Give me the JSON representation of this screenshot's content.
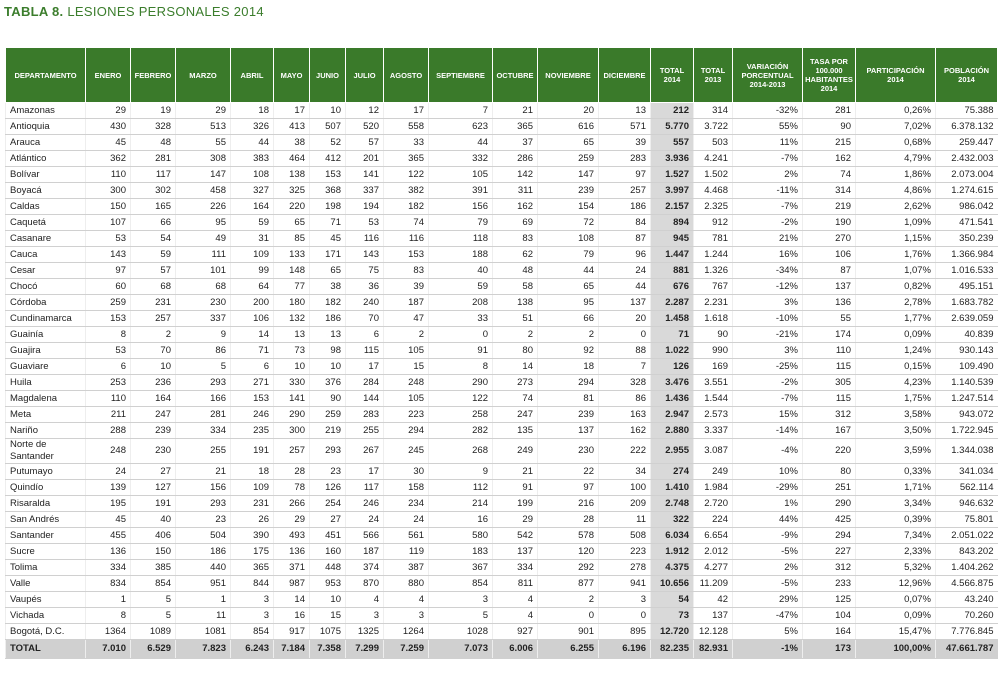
{
  "title": {
    "label": "TABLA 8.",
    "text": "LESIONES PERSONALES 2014"
  },
  "table": {
    "headers": [
      "DEPARTAMENTO",
      "ENERO",
      "FEBRERO",
      "MARZO",
      "ABRIL",
      "MAYO",
      "JUNIO",
      "JULIO",
      "AGOSTO",
      "SEPTIEMBRE",
      "OCTUBRE",
      "NOVIEMBRE",
      "DICIEMBRE",
      "TOTAL\n2014",
      "TOTAL\n2013",
      "VARIACIÓN\nPORCENTUAL\n2014-2013",
      "TASA POR\n100.000\nHABITANTES\n2014",
      "PARTICIPACIÓN\n2014",
      "POBLACIÓN\n2014"
    ],
    "rows": [
      [
        "Amazonas",
        "29",
        "19",
        "29",
        "18",
        "17",
        "10",
        "12",
        "17",
        "7",
        "21",
        "20",
        "13",
        "212",
        "314",
        "-32%",
        "281",
        "0,26%",
        "75.388"
      ],
      [
        "Antioquia",
        "430",
        "328",
        "513",
        "326",
        "413",
        "507",
        "520",
        "558",
        "623",
        "365",
        "616",
        "571",
        "5.770",
        "3.722",
        "55%",
        "90",
        "7,02%",
        "6.378.132"
      ],
      [
        "Arauca",
        "45",
        "48",
        "55",
        "44",
        "38",
        "52",
        "57",
        "33",
        "44",
        "37",
        "65",
        "39",
        "557",
        "503",
        "11%",
        "215",
        "0,68%",
        "259.447"
      ],
      [
        "Atlántico",
        "362",
        "281",
        "308",
        "383",
        "464",
        "412",
        "201",
        "365",
        "332",
        "286",
        "259",
        "283",
        "3.936",
        "4.241",
        "-7%",
        "162",
        "4,79%",
        "2.432.003"
      ],
      [
        "Bolívar",
        "110",
        "117",
        "147",
        "108",
        "138",
        "153",
        "141",
        "122",
        "105",
        "142",
        "147",
        "97",
        "1.527",
        "1.502",
        "2%",
        "74",
        "1,86%",
        "2.073.004"
      ],
      [
        "Boyacá",
        "300",
        "302",
        "458",
        "327",
        "325",
        "368",
        "337",
        "382",
        "391",
        "311",
        "239",
        "257",
        "3.997",
        "4.468",
        "-11%",
        "314",
        "4,86%",
        "1.274.615"
      ],
      [
        "Caldas",
        "150",
        "165",
        "226",
        "164",
        "220",
        "198",
        "194",
        "182",
        "156",
        "162",
        "154",
        "186",
        "2.157",
        "2.325",
        "-7%",
        "219",
        "2,62%",
        "986.042"
      ],
      [
        "Caquetá",
        "107",
        "66",
        "95",
        "59",
        "65",
        "71",
        "53",
        "74",
        "79",
        "69",
        "72",
        "84",
        "894",
        "912",
        "-2%",
        "190",
        "1,09%",
        "471.541"
      ],
      [
        "Casanare",
        "53",
        "54",
        "49",
        "31",
        "85",
        "45",
        "116",
        "116",
        "118",
        "83",
        "108",
        "87",
        "945",
        "781",
        "21%",
        "270",
        "1,15%",
        "350.239"
      ],
      [
        "Cauca",
        "143",
        "59",
        "111",
        "109",
        "133",
        "171",
        "143",
        "153",
        "188",
        "62",
        "79",
        "96",
        "1.447",
        "1.244",
        "16%",
        "106",
        "1,76%",
        "1.366.984"
      ],
      [
        "Cesar",
        "97",
        "57",
        "101",
        "99",
        "148",
        "65",
        "75",
        "83",
        "40",
        "48",
        "44",
        "24",
        "881",
        "1.326",
        "-34%",
        "87",
        "1,07%",
        "1.016.533"
      ],
      [
        "Chocó",
        "60",
        "68",
        "68",
        "64",
        "77",
        "38",
        "36",
        "39",
        "59",
        "58",
        "65",
        "44",
        "676",
        "767",
        "-12%",
        "137",
        "0,82%",
        "495.151"
      ],
      [
        "Córdoba",
        "259",
        "231",
        "230",
        "200",
        "180",
        "182",
        "240",
        "187",
        "208",
        "138",
        "95",
        "137",
        "2.287",
        "2.231",
        "3%",
        "136",
        "2,78%",
        "1.683.782"
      ],
      [
        "Cundinamarca",
        "153",
        "257",
        "337",
        "106",
        "132",
        "186",
        "70",
        "47",
        "33",
        "51",
        "66",
        "20",
        "1.458",
        "1.618",
        "-10%",
        "55",
        "1,77%",
        "2.639.059"
      ],
      [
        "Guainía",
        "8",
        "2",
        "9",
        "14",
        "13",
        "13",
        "6",
        "2",
        "0",
        "2",
        "2",
        "0",
        "71",
        "90",
        "-21%",
        "174",
        "0,09%",
        "40.839"
      ],
      [
        "Guajira",
        "53",
        "70",
        "86",
        "71",
        "73",
        "98",
        "115",
        "105",
        "91",
        "80",
        "92",
        "88",
        "1.022",
        "990",
        "3%",
        "110",
        "1,24%",
        "930.143"
      ],
      [
        "Guaviare",
        "6",
        "10",
        "5",
        "6",
        "10",
        "10",
        "17",
        "15",
        "8",
        "14",
        "18",
        "7",
        "126",
        "169",
        "-25%",
        "115",
        "0,15%",
        "109.490"
      ],
      [
        "Huila",
        "253",
        "236",
        "293",
        "271",
        "330",
        "376",
        "284",
        "248",
        "290",
        "273",
        "294",
        "328",
        "3.476",
        "3.551",
        "-2%",
        "305",
        "4,23%",
        "1.140.539"
      ],
      [
        "Magdalena",
        "110",
        "164",
        "166",
        "153",
        "141",
        "90",
        "144",
        "105",
        "122",
        "74",
        "81",
        "86",
        "1.436",
        "1.544",
        "-7%",
        "115",
        "1,75%",
        "1.247.514"
      ],
      [
        "Meta",
        "211",
        "247",
        "281",
        "246",
        "290",
        "259",
        "283",
        "223",
        "258",
        "247",
        "239",
        "163",
        "2.947",
        "2.573",
        "15%",
        "312",
        "3,58%",
        "943.072"
      ],
      [
        "Nariño",
        "288",
        "239",
        "334",
        "235",
        "300",
        "219",
        "255",
        "294",
        "282",
        "135",
        "137",
        "162",
        "2.880",
        "3.337",
        "-14%",
        "167",
        "3,50%",
        "1.722.945"
      ],
      [
        "Norte de Santander",
        "248",
        "230",
        "255",
        "191",
        "257",
        "293",
        "267",
        "245",
        "268",
        "249",
        "230",
        "222",
        "2.955",
        "3.087",
        "-4%",
        "220",
        "3,59%",
        "1.344.038"
      ],
      [
        "Putumayo",
        "24",
        "27",
        "21",
        "18",
        "28",
        "23",
        "17",
        "30",
        "9",
        "21",
        "22",
        "34",
        "274",
        "249",
        "10%",
        "80",
        "0,33%",
        "341.034"
      ],
      [
        "Quindío",
        "139",
        "127",
        "156",
        "109",
        "78",
        "126",
        "117",
        "158",
        "112",
        "91",
        "97",
        "100",
        "1.410",
        "1.984",
        "-29%",
        "251",
        "1,71%",
        "562.114"
      ],
      [
        "Risaralda",
        "195",
        "191",
        "293",
        "231",
        "266",
        "254",
        "246",
        "234",
        "214",
        "199",
        "216",
        "209",
        "2.748",
        "2.720",
        "1%",
        "290",
        "3,34%",
        "946.632"
      ],
      [
        "San Andrés",
        "45",
        "40",
        "23",
        "26",
        "29",
        "27",
        "24",
        "24",
        "16",
        "29",
        "28",
        "11",
        "322",
        "224",
        "44%",
        "425",
        "0,39%",
        "75.801"
      ],
      [
        "Santander",
        "455",
        "406",
        "504",
        "390",
        "493",
        "451",
        "566",
        "561",
        "580",
        "542",
        "578",
        "508",
        "6.034",
        "6.654",
        "-9%",
        "294",
        "7,34%",
        "2.051.022"
      ],
      [
        "Sucre",
        "136",
        "150",
        "186",
        "175",
        "136",
        "160",
        "187",
        "119",
        "183",
        "137",
        "120",
        "223",
        "1.912",
        "2.012",
        "-5%",
        "227",
        "2,33%",
        "843.202"
      ],
      [
        "Tolima",
        "334",
        "385",
        "440",
        "365",
        "371",
        "448",
        "374",
        "387",
        "367",
        "334",
        "292",
        "278",
        "4.375",
        "4.277",
        "2%",
        "312",
        "5,32%",
        "1.404.262"
      ],
      [
        "Valle",
        "834",
        "854",
        "951",
        "844",
        "987",
        "953",
        "870",
        "880",
        "854",
        "811",
        "877",
        "941",
        "10.656",
        "11.209",
        "-5%",
        "233",
        "12,96%",
        "4.566.875"
      ],
      [
        "Vaupés",
        "1",
        "5",
        "1",
        "3",
        "14",
        "10",
        "4",
        "4",
        "3",
        "4",
        "2",
        "3",
        "54",
        "42",
        "29%",
        "125",
        "0,07%",
        "43.240"
      ],
      [
        "Vichada",
        "8",
        "5",
        "11",
        "3",
        "16",
        "15",
        "3",
        "3",
        "5",
        "4",
        "0",
        "0",
        "73",
        "137",
        "-47%",
        "104",
        "0,09%",
        "70.260"
      ],
      [
        "Bogotá, D.C.",
        "1364",
        "1089",
        "1081",
        "854",
        "917",
        "1075",
        "1325",
        "1264",
        "1028",
        "927",
        "901",
        "895",
        "12.720",
        "12.128",
        "5%",
        "164",
        "15,47%",
        "7.776.845"
      ]
    ],
    "total": [
      "TOTAL",
      "7.010",
      "6.529",
      "7.823",
      "6.243",
      "7.184",
      "7.358",
      "7.299",
      "7.259",
      "7.073",
      "6.006",
      "6.255",
      "6.196",
      "82.235",
      "82.931",
      "-1%",
      "173",
      "100,00%",
      "47.661.787"
    ]
  }
}
